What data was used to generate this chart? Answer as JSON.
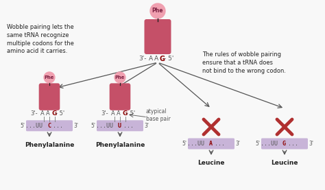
{
  "bg_color": "#f8f8f8",
  "trna_body_color": "#c55068",
  "trna_circle_color": "#f0a0b0",
  "codon_bg": "#c8b4d8",
  "cross_color": "#b03030",
  "arrow_color": "#555555",
  "text_color": "#222222",
  "highlight_color": "#8B0000",
  "normal_text": "#555555",
  "left_text": "Wobble pairing lets the\nsame tRNA recognize\nmultiple codons for the\namino acid it carries.",
  "right_text": "The rules of wobble pairing\nensure that a tRNA does\nnot bind to the wrong codon.",
  "atypical_text": "atypical\nbase pair",
  "col1_label": "Phenylalanine",
  "col2_label": "Phenylalanine",
  "col3_label": "Leucine",
  "col4_label": "Leucine",
  "col1_hi": "C",
  "col2_hi": "U",
  "col3_hi": "A",
  "col4_hi": "G"
}
